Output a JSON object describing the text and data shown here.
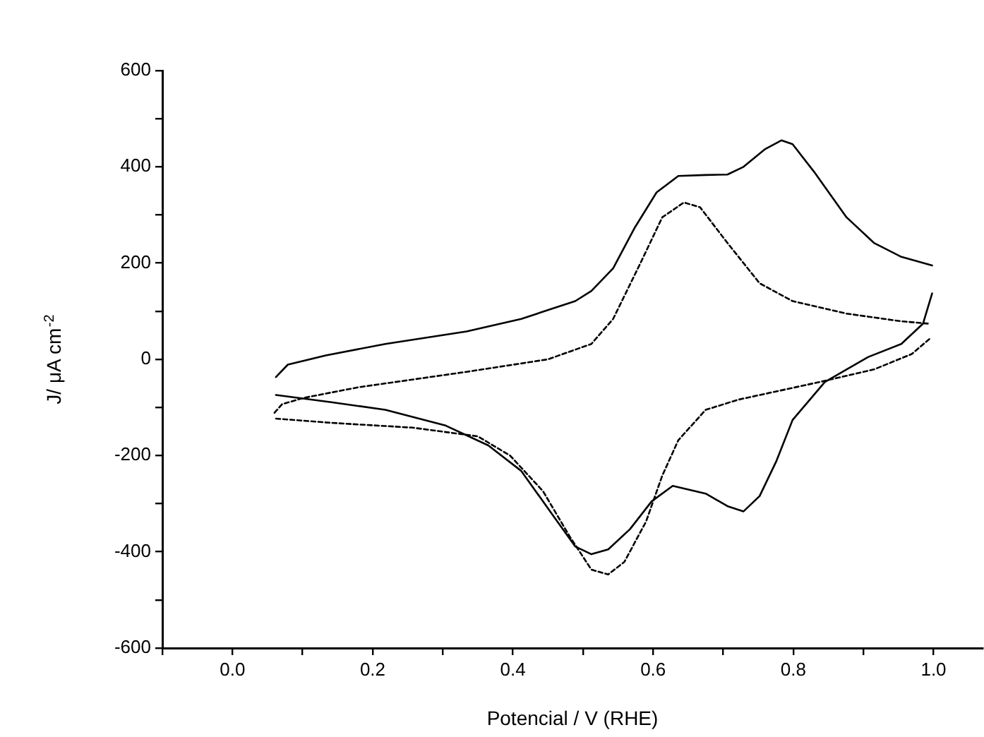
{
  "chart_data": {
    "type": "line",
    "xlabel": "Potencial / V (RHE)",
    "ylabel": "J/ μA cm$^{-2}$",
    "marker": "none",
    "xlim": [
      -0.1,
      1.07
    ],
    "xticks": [
      {
        "value": -0.1,
        "label": null
      },
      {
        "value": 0,
        "label": "0.0"
      },
      {
        "value": 0.1,
        "label": null
      },
      {
        "value": 0.2,
        "label": "0.2"
      },
      {
        "value": 0.3,
        "label": null
      },
      {
        "value": 0.4,
        "label": "0.4"
      },
      {
        "value": 0.5,
        "label": null
      },
      {
        "value": 0.6,
        "label": "0.6"
      },
      {
        "value": 0.7,
        "label": null
      },
      {
        "value": 0.8,
        "label": "0.8"
      },
      {
        "value": 0.9,
        "label": null
      },
      {
        "value": 1,
        "label": "1.0"
      }
    ],
    "ylim": [
      -600,
      600
    ],
    "yticks": [
      -600,
      {
        "value": -500,
        "label": null
      },
      -400,
      {
        "value": -300,
        "label": null
      },
      -200,
      {
        "value": -100,
        "label": null
      },
      0,
      {
        "value": 100,
        "label": null
      },
      200,
      {
        "value": 300,
        "label": null
      },
      400,
      {
        "value": 500,
        "label": null
      },
      600
    ],
    "series": [
      {
        "color": "#000000",
        "line_style": "solid",
        "x": [
          0.062,
          0.079,
          0.133,
          0.218,
          0.334,
          0.412,
          0.489,
          0.512,
          0.543,
          0.574,
          0.605,
          0.636,
          0.675,
          0.706,
          0.729,
          0.76,
          0.783,
          0.799,
          0.83,
          0.876,
          0.915,
          0.954,
          0.998
        ],
        "values": [
          -37,
          -11,
          8,
          32,
          58,
          84,
          121,
          142,
          189,
          274,
          347,
          381,
          383,
          384,
          400,
          437,
          455,
          447,
          389,
          295,
          242,
          213,
          195
        ]
      },
      {
        "color": "#000000",
        "line_style": "solid",
        "x": [
          0.998,
          0.985,
          0.954,
          0.907,
          0.845,
          0.799,
          0.776,
          0.752,
          0.729,
          0.706,
          0.675,
          0.628,
          0.598,
          0.567,
          0.536,
          0.512,
          0.489,
          0.458,
          0.412,
          0.365,
          0.303,
          0.218,
          0.141,
          0.062
        ],
        "values": [
          137,
          74,
          32,
          5,
          -47,
          -126,
          -211,
          -284,
          -316,
          -305,
          -279,
          -263,
          -295,
          -353,
          -395,
          -405,
          -389,
          -326,
          -232,
          -179,
          -137,
          -105,
          -89,
          -74
        ]
      },
      {
        "color": "#000000",
        "line_style": "dashed",
        "x": [
          0.06,
          0.071,
          0.102,
          0.18,
          0.334,
          0.45,
          0.512,
          0.543,
          0.582,
          0.613,
          0.644,
          0.667,
          0.706,
          0.752,
          0.799,
          0.876,
          0.954,
          0.994
        ],
        "values": [
          -111,
          -93,
          -80,
          -58,
          -26,
          0,
          32,
          84,
          200,
          295,
          326,
          316,
          242,
          158,
          121,
          95,
          79,
          74
        ]
      },
      {
        "color": "#000000",
        "line_style": "dashed",
        "x": [
          0.994,
          0.969,
          0.915,
          0.838,
          0.721,
          0.675,
          0.636,
          0.613,
          0.59,
          0.559,
          0.536,
          0.512,
          0.481,
          0.443,
          0.396,
          0.35,
          0.257,
          0.141,
          0.06
        ],
        "values": [
          42,
          11,
          -21,
          -47,
          -84,
          -105,
          -168,
          -242,
          -337,
          -421,
          -447,
          -437,
          -368,
          -274,
          -200,
          -160,
          -142,
          -132,
          -123
        ]
      }
    ]
  }
}
